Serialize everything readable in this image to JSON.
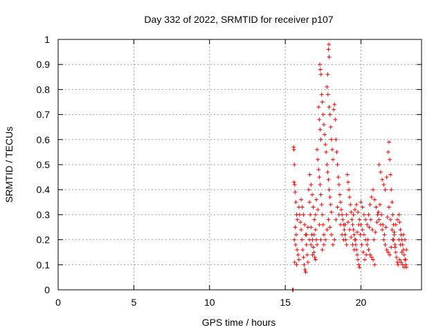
{
  "chart_data": {
    "type": "scatter",
    "title": "Day 332 of 2022, SRMTID for receiver p107",
    "xlabel": "GPS time / hours",
    "ylabel": "SRMTID / TECUs",
    "xlim": [
      0,
      24
    ],
    "ylim": [
      0,
      1
    ],
    "xticks": [
      0,
      5,
      10,
      15,
      20
    ],
    "yticks": [
      0,
      0.1,
      0.2,
      0.3,
      0.4,
      0.5,
      0.6,
      0.7,
      0.8,
      0.9,
      1
    ],
    "ytick_labels": [
      "0",
      "0.1",
      "0.2",
      "0.3",
      "0.4",
      "0.5",
      "0.6",
      "0.7",
      "0.8",
      "0.9",
      "1"
    ],
    "grid": true,
    "marker": "+",
    "color": "#ff0000",
    "series": [
      {
        "name": "SRMTID",
        "points": [
          [
            15.48,
            0.0
          ],
          [
            15.5,
            0.0
          ],
          [
            15.52,
            0.0
          ],
          [
            15.55,
            0.57
          ],
          [
            15.57,
            0.56
          ],
          [
            15.6,
            0.5
          ],
          [
            15.58,
            0.43
          ],
          [
            15.62,
            0.42
          ],
          [
            15.65,
            0.39
          ],
          [
            15.7,
            0.35
          ],
          [
            15.75,
            0.3
          ],
          [
            15.8,
            0.28
          ],
          [
            15.66,
            0.25
          ],
          [
            15.72,
            0.22
          ],
          [
            15.6,
            0.2
          ],
          [
            15.68,
            0.18
          ],
          [
            15.78,
            0.16
          ],
          [
            15.85,
            0.14
          ],
          [
            15.9,
            0.12
          ],
          [
            15.62,
            0.11
          ],
          [
            15.75,
            0.1
          ],
          [
            15.9,
            0.33
          ],
          [
            15.95,
            0.3
          ],
          [
            16.0,
            0.27
          ],
          [
            16.05,
            0.24
          ],
          [
            16.1,
            0.2
          ],
          [
            16.15,
            0.16
          ],
          [
            16.2,
            0.13
          ],
          [
            16.25,
            0.1
          ],
          [
            16.3,
            0.08
          ],
          [
            16.35,
            0.07
          ],
          [
            16.05,
            0.36
          ],
          [
            16.12,
            0.33
          ],
          [
            16.2,
            0.3
          ],
          [
            16.28,
            0.26
          ],
          [
            16.35,
            0.22
          ],
          [
            16.4,
            0.18
          ],
          [
            16.45,
            0.14
          ],
          [
            16.5,
            0.11
          ],
          [
            16.55,
            0.4
          ],
          [
            16.6,
            0.35
          ],
          [
            16.65,
            0.3
          ],
          [
            16.7,
            0.25
          ],
          [
            16.75,
            0.22
          ],
          [
            16.8,
            0.2
          ],
          [
            16.85,
            0.17
          ],
          [
            16.9,
            0.15
          ],
          [
            16.95,
            0.13
          ],
          [
            17.0,
            0.12
          ],
          [
            16.62,
            0.46
          ],
          [
            16.7,
            0.42
          ],
          [
            16.78,
            0.38
          ],
          [
            16.85,
            0.33
          ],
          [
            16.92,
            0.28
          ],
          [
            17.0,
            0.24
          ],
          [
            17.05,
            0.2
          ],
          [
            17.1,
            0.18
          ],
          [
            17.1,
            0.56
          ],
          [
            17.15,
            0.52
          ],
          [
            17.2,
            0.48
          ],
          [
            17.25,
            0.45
          ],
          [
            17.3,
            0.42
          ],
          [
            17.35,
            0.38
          ],
          [
            17.4,
            0.34
          ],
          [
            17.45,
            0.3
          ],
          [
            17.5,
            0.26
          ],
          [
            17.55,
            0.22
          ],
          [
            17.2,
            0.73
          ],
          [
            17.25,
            0.68
          ],
          [
            17.3,
            0.64
          ],
          [
            17.35,
            0.6
          ],
          [
            17.28,
            0.9
          ],
          [
            17.32,
            0.88
          ],
          [
            17.36,
            0.86
          ],
          [
            17.4,
            0.78
          ],
          [
            17.45,
            0.75
          ],
          [
            17.5,
            0.7
          ],
          [
            17.55,
            0.66
          ],
          [
            17.6,
            0.62
          ],
          [
            17.65,
            0.58
          ],
          [
            17.7,
            0.55
          ],
          [
            17.75,
            0.5
          ],
          [
            17.8,
            0.47
          ],
          [
            17.85,
            0.44
          ],
          [
            17.9,
            0.4
          ],
          [
            17.95,
            0.37
          ],
          [
            18.0,
            0.34
          ],
          [
            18.05,
            0.31
          ],
          [
            17.75,
            0.81
          ],
          [
            17.8,
            0.86
          ],
          [
            17.85,
            0.96
          ],
          [
            17.88,
            0.98
          ],
          [
            17.9,
            0.93
          ],
          [
            17.82,
            0.78
          ],
          [
            17.9,
            0.73
          ],
          [
            17.95,
            0.7
          ],
          [
            18.0,
            0.65
          ],
          [
            18.05,
            0.6
          ],
          [
            18.1,
            0.56
          ],
          [
            18.15,
            0.52
          ],
          [
            18.2,
            0.72
          ],
          [
            18.25,
            0.74
          ],
          [
            18.3,
            0.68
          ],
          [
            18.35,
            0.6
          ],
          [
            18.4,
            0.55
          ],
          [
            18.45,
            0.5
          ],
          [
            18.5,
            0.45
          ],
          [
            18.55,
            0.42
          ],
          [
            18.6,
            0.38
          ],
          [
            18.65,
            0.35
          ],
          [
            18.7,
            0.32
          ],
          [
            18.75,
            0.3
          ],
          [
            18.8,
            0.28
          ],
          [
            18.85,
            0.26
          ],
          [
            18.9,
            0.24
          ],
          [
            18.95,
            0.22
          ],
          [
            19.0,
            0.2
          ],
          [
            19.05,
            0.18
          ],
          [
            19.1,
            0.46
          ],
          [
            19.15,
            0.43
          ],
          [
            19.2,
            0.4
          ],
          [
            19.25,
            0.37
          ],
          [
            19.3,
            0.34
          ],
          [
            19.35,
            0.31
          ],
          [
            19.4,
            0.28
          ],
          [
            19.45,
            0.26
          ],
          [
            19.5,
            0.24
          ],
          [
            19.55,
            0.22
          ],
          [
            19.6,
            0.2
          ],
          [
            19.65,
            0.18
          ],
          [
            19.7,
            0.16
          ],
          [
            19.75,
            0.14
          ],
          [
            19.8,
            0.12
          ],
          [
            19.85,
            0.1
          ],
          [
            19.9,
            0.09
          ],
          [
            19.5,
            0.3
          ],
          [
            19.6,
            0.32
          ],
          [
            19.7,
            0.34
          ],
          [
            19.8,
            0.31
          ],
          [
            19.9,
            0.28
          ],
          [
            20.0,
            0.26
          ],
          [
            20.1,
            0.24
          ],
          [
            20.2,
            0.22
          ],
          [
            20.3,
            0.2
          ],
          [
            20.4,
            0.18
          ],
          [
            20.5,
            0.16
          ],
          [
            20.6,
            0.14
          ],
          [
            20.7,
            0.13
          ],
          [
            20.8,
            0.12
          ],
          [
            20.9,
            0.1
          ],
          [
            20.0,
            0.35
          ],
          [
            20.1,
            0.33
          ],
          [
            20.2,
            0.3
          ],
          [
            20.3,
            0.28
          ],
          [
            20.4,
            0.26
          ],
          [
            20.5,
            0.3
          ],
          [
            20.6,
            0.34
          ],
          [
            20.7,
            0.37
          ],
          [
            20.8,
            0.4
          ],
          [
            20.9,
            0.36
          ],
          [
            21.0,
            0.33
          ],
          [
            21.1,
            0.3
          ],
          [
            21.2,
            0.28
          ],
          [
            21.3,
            0.26
          ],
          [
            21.4,
            0.24
          ],
          [
            21.2,
            0.5
          ],
          [
            21.3,
            0.47
          ],
          [
            21.4,
            0.44
          ],
          [
            21.5,
            0.42
          ],
          [
            21.6,
            0.4
          ],
          [
            21.7,
            0.45
          ],
          [
            21.8,
            0.55
          ],
          [
            21.85,
            0.59
          ],
          [
            21.9,
            0.52
          ],
          [
            21.95,
            0.46
          ],
          [
            22.0,
            0.4
          ],
          [
            22.05,
            0.35
          ],
          [
            22.1,
            0.3
          ],
          [
            22.15,
            0.26
          ],
          [
            22.2,
            0.22
          ],
          [
            22.25,
            0.18
          ],
          [
            22.3,
            0.15
          ],
          [
            22.35,
            0.13
          ],
          [
            22.4,
            0.11
          ],
          [
            22.45,
            0.1
          ],
          [
            21.5,
            0.2
          ],
          [
            21.6,
            0.18
          ],
          [
            21.7,
            0.16
          ],
          [
            21.8,
            0.15
          ],
          [
            21.9,
            0.14
          ],
          [
            22.0,
            0.17
          ],
          [
            22.1,
            0.2
          ],
          [
            22.2,
            0.23
          ],
          [
            22.3,
            0.26
          ],
          [
            22.4,
            0.28
          ],
          [
            22.5,
            0.3
          ],
          [
            22.55,
            0.27
          ],
          [
            22.6,
            0.24
          ],
          [
            22.65,
            0.22
          ],
          [
            22.7,
            0.2
          ],
          [
            22.75,
            0.18
          ],
          [
            22.8,
            0.16
          ],
          [
            22.85,
            0.14
          ],
          [
            22.9,
            0.12
          ],
          [
            22.95,
            0.1
          ],
          [
            23.0,
            0.09
          ],
          [
            22.5,
            0.2
          ],
          [
            22.6,
            0.18
          ],
          [
            22.7,
            0.15
          ],
          [
            22.8,
            0.22
          ],
          [
            22.9,
            0.2
          ],
          [
            23.0,
            0.16
          ],
          [
            22.55,
            0.12
          ],
          [
            22.65,
            0.11
          ],
          [
            22.75,
            0.1
          ],
          [
            22.85,
            0.09
          ],
          [
            22.95,
            0.12
          ],
          [
            16.4,
            0.22
          ],
          [
            16.5,
            0.25
          ],
          [
            16.6,
            0.2
          ],
          [
            16.7,
            0.18
          ],
          [
            16.8,
            0.14
          ],
          [
            16.9,
            0.22
          ],
          [
            17.0,
            0.3
          ],
          [
            17.05,
            0.36
          ],
          [
            17.15,
            0.32
          ],
          [
            17.25,
            0.26
          ],
          [
            17.35,
            0.2
          ],
          [
            17.45,
            0.16
          ],
          [
            17.55,
            0.18
          ],
          [
            17.65,
            0.2
          ],
          [
            17.75,
            0.24
          ],
          [
            17.85,
            0.28
          ],
          [
            17.95,
            0.25
          ],
          [
            18.05,
            0.22
          ],
          [
            18.15,
            0.18
          ],
          [
            18.25,
            0.2
          ],
          [
            18.35,
            0.28
          ],
          [
            18.45,
            0.33
          ],
          [
            18.55,
            0.3
          ],
          [
            18.65,
            0.26
          ],
          [
            18.75,
            0.22
          ],
          [
            18.85,
            0.2
          ],
          [
            18.95,
            0.26
          ],
          [
            19.05,
            0.3
          ],
          [
            19.15,
            0.27
          ],
          [
            19.25,
            0.24
          ],
          [
            19.35,
            0.21
          ],
          [
            19.45,
            0.18
          ],
          [
            19.55,
            0.16
          ],
          [
            19.65,
            0.2
          ],
          [
            19.75,
            0.23
          ],
          [
            19.85,
            0.26
          ],
          [
            19.95,
            0.22
          ],
          [
            20.05,
            0.18
          ],
          [
            20.15,
            0.15
          ],
          [
            20.25,
            0.12
          ],
          [
            20.35,
            0.14
          ],
          [
            20.45,
            0.2
          ],
          [
            20.55,
            0.25
          ],
          [
            20.65,
            0.28
          ],
          [
            20.75,
            0.24
          ],
          [
            20.85,
            0.2
          ],
          [
            20.95,
            0.23
          ],
          [
            21.05,
            0.27
          ],
          [
            21.15,
            0.31
          ],
          [
            21.25,
            0.34
          ],
          [
            21.35,
            0.3
          ],
          [
            21.45,
            0.26
          ],
          [
            21.55,
            0.22
          ],
          [
            21.65,
            0.25
          ],
          [
            21.75,
            0.29
          ],
          [
            21.85,
            0.33
          ],
          [
            21.95,
            0.28
          ],
          [
            22.05,
            0.24
          ],
          [
            22.15,
            0.2
          ],
          [
            22.25,
            0.17
          ]
        ]
      }
    ]
  }
}
